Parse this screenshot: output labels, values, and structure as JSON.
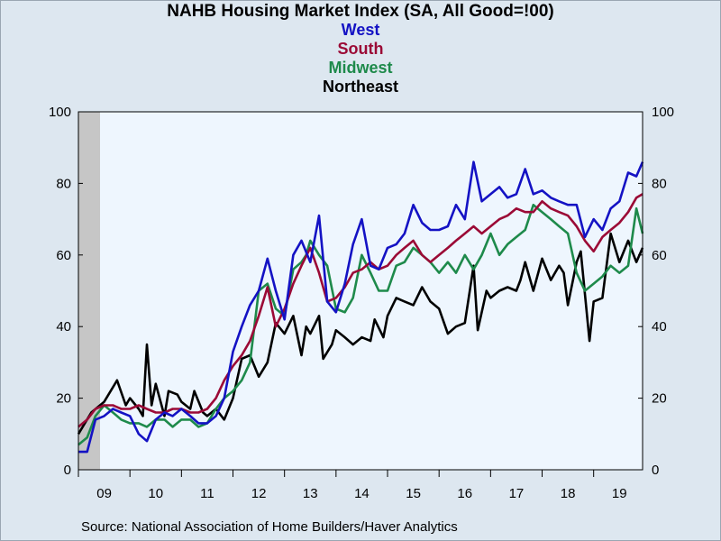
{
  "chart_data": {
    "type": "line",
    "title": "NAHB Housing Market Index (SA, All Good=!00)",
    "source": "Source:  National Association of Home Builders/Haver Analytics",
    "xlabels": [
      "09",
      "10",
      "11",
      "12",
      "13",
      "14",
      "15",
      "16",
      "17",
      "18",
      "19"
    ],
    "xlim": [
      2009.0,
      2019.95
    ],
    "ylim": [
      0,
      100
    ],
    "yticks": [
      0,
      20,
      40,
      60,
      80,
      100
    ],
    "recession_shade": [
      2009.0,
      2009.42
    ],
    "colors": {
      "background": "#dde7f0",
      "plot_background": "#eef6fe",
      "recession": "#c6c6c6"
    },
    "series": [
      {
        "name": "Northeast",
        "color": "#000000",
        "x": [
          2009.0,
          2009.25,
          2009.5,
          2009.75,
          2009.92,
          2010.0,
          2010.17,
          2010.25,
          2010.33,
          2010.42,
          2010.5,
          2010.67,
          2010.75,
          2010.92,
          2011.0,
          2011.17,
          2011.25,
          2011.42,
          2011.5,
          2011.67,
          2011.83,
          2012.0,
          2012.17,
          2012.33,
          2012.5,
          2012.67,
          2012.83,
          2013.0,
          2013.17,
          2013.33,
          2013.42,
          2013.5,
          2013.67,
          2013.75,
          2013.92,
          2014.0,
          2014.17,
          2014.33,
          2014.5,
          2014.67,
          2014.75,
          2014.92,
          2015.0,
          2015.17,
          2015.33,
          2015.5,
          2015.67,
          2015.83,
          2016.0,
          2016.17,
          2016.33,
          2016.5,
          2016.67,
          2016.75,
          2016.92,
          2017.0,
          2017.17,
          2017.33,
          2017.5,
          2017.58,
          2017.67,
          2017.83,
          2018.0,
          2018.17,
          2018.33,
          2018.42,
          2018.5,
          2018.67,
          2018.75,
          2018.92,
          2019.0,
          2019.17,
          2019.33,
          2019.5,
          2019.67,
          2019.83,
          2019.95
        ],
        "y": [
          10,
          16,
          19,
          25,
          18,
          20,
          17,
          15,
          35,
          18,
          24,
          15,
          22,
          21,
          19,
          17,
          22,
          16,
          15,
          17,
          14,
          20,
          31,
          32,
          26,
          30,
          41,
          38,
          43,
          32,
          40,
          38,
          43,
          31,
          35,
          39,
          37,
          35,
          37,
          36,
          42,
          37,
          43,
          48,
          47,
          46,
          51,
          47,
          45,
          38,
          40,
          41,
          57,
          39,
          50,
          48,
          50,
          51,
          50,
          53,
          58,
          50,
          59,
          53,
          57,
          55,
          46,
          58,
          61,
          36,
          47,
          48,
          66,
          58,
          64,
          58,
          62
        ]
      },
      {
        "name": "Midwest",
        "color": "#1e8a4b",
        "x": [
          2009.0,
          2009.17,
          2009.33,
          2009.5,
          2009.67,
          2009.83,
          2010.0,
          2010.17,
          2010.33,
          2010.5,
          2010.67,
          2010.83,
          2011.0,
          2011.17,
          2011.33,
          2011.5,
          2011.67,
          2011.83,
          2012.0,
          2012.17,
          2012.33,
          2012.5,
          2012.67,
          2012.83,
          2013.0,
          2013.17,
          2013.33,
          2013.42,
          2013.5,
          2013.67,
          2013.83,
          2014.0,
          2014.17,
          2014.33,
          2014.5,
          2014.67,
          2014.83,
          2015.0,
          2015.17,
          2015.33,
          2015.5,
          2015.67,
          2015.83,
          2016.0,
          2016.17,
          2016.33,
          2016.5,
          2016.67,
          2016.83,
          2017.0,
          2017.17,
          2017.33,
          2017.5,
          2017.67,
          2017.83,
          2018.0,
          2018.17,
          2018.33,
          2018.5,
          2018.67,
          2018.83,
          2019.0,
          2019.17,
          2019.33,
          2019.5,
          2019.67,
          2019.83,
          2019.95
        ],
        "y": [
          7,
          9,
          15,
          18,
          16,
          14,
          13,
          13,
          12,
          14,
          14,
          12,
          14,
          14,
          12,
          13,
          17,
          20,
          22,
          25,
          30,
          50,
          52,
          45,
          43,
          56,
          58,
          60,
          64,
          60,
          57,
          45,
          44,
          48,
          60,
          55,
          50,
          50,
          57,
          58,
          62,
          60,
          58,
          55,
          58,
          55,
          60,
          56,
          60,
          66,
          60,
          63,
          65,
          67,
          74,
          72,
          70,
          68,
          66,
          55,
          50,
          52,
          54,
          57,
          55,
          57,
          73,
          66
        ]
      },
      {
        "name": "South",
        "color": "#9b0a36",
        "x": [
          2009.0,
          2009.17,
          2009.33,
          2009.5,
          2009.67,
          2009.83,
          2010.0,
          2010.17,
          2010.33,
          2010.5,
          2010.67,
          2010.83,
          2011.0,
          2011.17,
          2011.33,
          2011.5,
          2011.67,
          2011.83,
          2012.0,
          2012.17,
          2012.33,
          2012.5,
          2012.67,
          2012.83,
          2013.0,
          2013.17,
          2013.33,
          2013.5,
          2013.67,
          2013.83,
          2014.0,
          2014.17,
          2014.33,
          2014.5,
          2014.67,
          2014.83,
          2015.0,
          2015.17,
          2015.33,
          2015.5,
          2015.67,
          2015.83,
          2016.0,
          2016.17,
          2016.33,
          2016.5,
          2016.67,
          2016.83,
          2017.0,
          2017.17,
          2017.33,
          2017.5,
          2017.67,
          2017.83,
          2018.0,
          2018.17,
          2018.33,
          2018.5,
          2018.67,
          2018.83,
          2019.0,
          2019.17,
          2019.33,
          2019.5,
          2019.67,
          2019.83,
          2019.95
        ],
        "y": [
          12,
          14,
          17,
          18,
          18,
          17,
          17,
          18,
          17,
          16,
          16,
          17,
          17,
          16,
          16,
          17,
          20,
          25,
          29,
          32,
          36,
          43,
          51,
          40,
          45,
          52,
          57,
          62,
          55,
          47,
          48,
          51,
          55,
          56,
          58,
          56,
          57,
          60,
          62,
          64,
          60,
          58,
          60,
          62,
          64,
          66,
          68,
          66,
          68,
          70,
          71,
          73,
          72,
          72,
          75,
          73,
          72,
          71,
          68,
          64,
          61,
          65,
          67,
          69,
          72,
          76,
          77
        ]
      },
      {
        "name": "West",
        "color": "#1412c4",
        "x": [
          2009.0,
          2009.17,
          2009.33,
          2009.5,
          2009.67,
          2009.83,
          2010.0,
          2010.17,
          2010.33,
          2010.5,
          2010.67,
          2010.83,
          2011.0,
          2011.17,
          2011.33,
          2011.5,
          2011.67,
          2011.83,
          2012.0,
          2012.17,
          2012.33,
          2012.5,
          2012.67,
          2012.83,
          2013.0,
          2013.17,
          2013.33,
          2013.5,
          2013.67,
          2013.83,
          2014.0,
          2014.17,
          2014.33,
          2014.5,
          2014.67,
          2014.83,
          2015.0,
          2015.17,
          2015.33,
          2015.5,
          2015.67,
          2015.83,
          2016.0,
          2016.17,
          2016.33,
          2016.5,
          2016.67,
          2016.83,
          2017.0,
          2017.17,
          2017.33,
          2017.5,
          2017.67,
          2017.83,
          2018.0,
          2018.17,
          2018.33,
          2018.5,
          2018.67,
          2018.83,
          2019.0,
          2019.17,
          2019.33,
          2019.5,
          2019.67,
          2019.83,
          2019.95
        ],
        "y": [
          5,
          5,
          14,
          15,
          17,
          16,
          15,
          10,
          8,
          14,
          16,
          15,
          17,
          15,
          13,
          13,
          15,
          20,
          33,
          40,
          46,
          50,
          59,
          50,
          42,
          60,
          64,
          58,
          71,
          47,
          44,
          52,
          63,
          70,
          57,
          56,
          62,
          63,
          66,
          74,
          69,
          67,
          67,
          68,
          74,
          70,
          86,
          75,
          77,
          79,
          76,
          77,
          84,
          77,
          78,
          76,
          75,
          74,
          74,
          65,
          70,
          67,
          73,
          75,
          83,
          82,
          86
        ]
      }
    ]
  }
}
